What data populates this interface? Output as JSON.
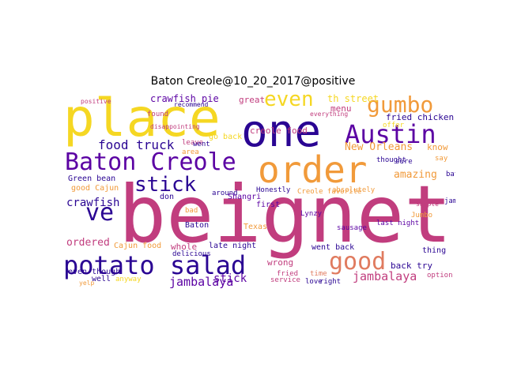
{
  "title": "Baton Creole@10_20_2017@positive",
  "palette": {
    "deep_purple": "#2a0593",
    "violet": "#5b02a3",
    "magenta": "#c13d7e",
    "orange": "#f19a3a",
    "salmon": "#e07b5f",
    "yellow": "#f5d723"
  },
  "words": [
    {
      "text": "beignet",
      "color": "#c13d7e"
    },
    {
      "text": "place",
      "color": "#f5d723"
    },
    {
      "text": "one",
      "color": "#2a0593"
    },
    {
      "text": "order",
      "color": "#f19a3a"
    },
    {
      "text": "Baton Creole",
      "color": "#5b02a3"
    },
    {
      "text": "potato salad",
      "color": "#2a0593"
    },
    {
      "text": "Austin",
      "color": "#5b02a3"
    },
    {
      "text": "gumbo",
      "color": "#f19a3a"
    },
    {
      "text": "even",
      "color": "#f5d723"
    },
    {
      "text": "good",
      "color": "#e07b5f"
    },
    {
      "text": "ve",
      "color": "#2a0593"
    },
    {
      "text": "stick",
      "color": "#2a0593"
    },
    {
      "text": "food truck",
      "color": "#2a0593"
    },
    {
      "text": "jambalaya",
      "color": "#5b02a3"
    },
    {
      "text": "jambalaya",
      "color": "#c13d7e"
    },
    {
      "text": "crawfish",
      "color": "#2a0593"
    },
    {
      "text": "New Orleans",
      "color": "#f19a3a"
    },
    {
      "text": "amazing",
      "color": "#f19a3a"
    },
    {
      "text": "ordered",
      "color": "#c13d7e"
    },
    {
      "text": "crawfish pie",
      "color": "#5b02a3"
    },
    {
      "text": "fried chicken",
      "color": "#2a0593"
    },
    {
      "text": "th street",
      "color": "#f5d723"
    },
    {
      "text": "menu",
      "color": "#c13d7e"
    },
    {
      "text": "creole food",
      "color": "#c13d7e"
    },
    {
      "text": "Green bean",
      "color": "#2a0593"
    },
    {
      "text": "good Cajun",
      "color": "#f19a3a"
    },
    {
      "text": "Cajun food",
      "color": "#f19a3a"
    },
    {
      "text": "late night",
      "color": "#2a0593"
    },
    {
      "text": "went back",
      "color": "#2a0593"
    },
    {
      "text": "back try",
      "color": "#2a0593"
    },
    {
      "text": "even though",
      "color": "#2a0593"
    },
    {
      "text": "stick",
      "color": "#5b02a3"
    },
    {
      "text": "whole",
      "color": "#c13d7e"
    },
    {
      "text": "wrong",
      "color": "#c13d7e"
    },
    {
      "text": "great",
      "color": "#c13d7e"
    },
    {
      "text": "Texas",
      "color": "#f19a3a"
    },
    {
      "text": "Baton",
      "color": "#2a0593"
    },
    {
      "text": "around",
      "color": "#2a0593"
    },
    {
      "text": "Honestly",
      "color": "#2a0593"
    },
    {
      "text": "Creole favorite",
      "color": "#f19a3a"
    },
    {
      "text": "absolutely",
      "color": "#f19a3a"
    },
    {
      "text": "sausage",
      "color": "#5b02a3"
    },
    {
      "text": "option",
      "color": "#c13d7e"
    },
    {
      "text": "thing",
      "color": "#2a0593"
    },
    {
      "text": "well",
      "color": "#2a0593"
    },
    {
      "text": "anyway",
      "color": "#f5d723"
    },
    {
      "text": "service",
      "color": "#c13d7e"
    },
    {
      "text": "love",
      "color": "#2a0593"
    },
    {
      "text": "right",
      "color": "#2a0593"
    },
    {
      "text": "time",
      "color": "#e07b5f"
    },
    {
      "text": "delicious",
      "color": "#2a0593"
    },
    {
      "text": "thought",
      "color": "#2a0593"
    },
    {
      "text": "know",
      "color": "#f19a3a"
    },
    {
      "text": "sure",
      "color": "#2a0593"
    },
    {
      "text": "offer",
      "color": "#f5d723"
    },
    {
      "text": "first",
      "color": "#5b02a3"
    },
    {
      "text": "don",
      "color": "#2a0593"
    },
    {
      "text": "bad",
      "color": "#f19a3a"
    },
    {
      "text": "everything",
      "color": "#c13d7e"
    },
    {
      "text": "Shangri",
      "color": "#5b02a3"
    },
    {
      "text": "baton",
      "color": "#2a0593"
    },
    {
      "text": "jambalaya",
      "color": "#2a0593"
    },
    {
      "text": "Lynzy",
      "color": "#5b02a3"
    },
    {
      "text": "last night",
      "color": "#5b02a3"
    },
    {
      "text": "found",
      "color": "#c13d7e"
    },
    {
      "text": "leave",
      "color": "#c13d7e"
    },
    {
      "text": "fried",
      "color": "#c13d7e"
    },
    {
      "text": "say",
      "color": "#f19a3a"
    },
    {
      "text": "go back",
      "color": "#f5d723"
    },
    {
      "text": "went",
      "color": "#2a0593"
    },
    {
      "text": "area",
      "color": "#f19a3a"
    },
    {
      "text": "Jumbo",
      "color": "#f19a3a"
    },
    {
      "text": "disappointing",
      "color": "#c13d7e"
    },
    {
      "text": "positive",
      "color": "#c13d7e"
    },
    {
      "text": "recommend",
      "color": "#2a0593"
    },
    {
      "text": "sample",
      "color": "#c13d7e"
    },
    {
      "text": "yelp",
      "color": "#f19a3a"
    }
  ]
}
